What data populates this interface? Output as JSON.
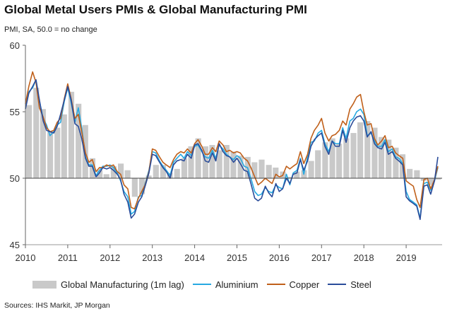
{
  "chart_data": {
    "type": "line",
    "title": "Global Metal Users PMIs & Global Manufacturing PMI",
    "subtitle": "PMI, SA, 50.0 = no change",
    "source": "Sources: IHS Markit, JP Morgan",
    "ylim": [
      45,
      60
    ],
    "yticks": [
      45,
      50,
      55,
      60
    ],
    "xlim": [
      2010,
      2019.85
    ],
    "xticks": [
      "2010",
      "2011",
      "2012",
      "2013",
      "2014",
      "2015",
      "2016",
      "2017",
      "2018",
      "2019"
    ],
    "baseline": 50,
    "grid": false,
    "legend_position": "bottom",
    "bar_series": {
      "name": "Global Manufacturing (1m lag)",
      "color": "#c9c9c9",
      "x": [
        2010.0,
        2010.17,
        2010.33,
        2010.5,
        2010.67,
        2010.83,
        2011.0,
        2011.17,
        2011.33,
        2011.5,
        2011.67,
        2011.83,
        2012.0,
        2012.17,
        2012.33,
        2012.5,
        2012.67,
        2012.83,
        2013.0,
        2013.17,
        2013.33,
        2013.5,
        2013.67,
        2013.83,
        2014.0,
        2014.17,
        2014.33,
        2014.5,
        2014.67,
        2014.83,
        2015.0,
        2015.17,
        2015.33,
        2015.5,
        2015.67,
        2015.83,
        2016.0,
        2016.17,
        2016.33,
        2016.5,
        2016.67,
        2016.83,
        2017.0,
        2017.17,
        2017.33,
        2017.5,
        2017.67,
        2017.83,
        2018.0,
        2018.17,
        2018.33,
        2018.5,
        2018.67,
        2018.83,
        2019.0,
        2019.17,
        2019.33,
        2019.5,
        2019.67
      ],
      "values": [
        55.5,
        56.8,
        55.2,
        53.5,
        53.8,
        54.8,
        56.5,
        55.6,
        54.0,
        51.5,
        50.6,
        50.3,
        50.9,
        51.1,
        50.6,
        48.6,
        48.8,
        50.2,
        51.0,
        51.0,
        50.4,
        50.7,
        51.5,
        52.4,
        53.0,
        52.4,
        52.5,
        52.1,
        52.5,
        52.0,
        51.7,
        51.6,
        51.2,
        51.4,
        51.0,
        50.8,
        50.5,
        50.1,
        50.5,
        50.6,
        51.3,
        52.1,
        52.7,
        53.0,
        52.6,
        53.0,
        53.4,
        54.2,
        54.3,
        53.8,
        53.1,
        52.9,
        52.3,
        51.8,
        50.7,
        50.6,
        49.8,
        49.5,
        49.9
      ]
    },
    "series": [
      {
        "name": "Aluminium",
        "color": "#27a9e1",
        "x": [
          2010.0,
          2010.08,
          2010.17,
          2010.25,
          2010.33,
          2010.42,
          2010.5,
          2010.58,
          2010.67,
          2010.75,
          2010.83,
          2010.92,
          2011.0,
          2011.08,
          2011.17,
          2011.25,
          2011.33,
          2011.42,
          2011.5,
          2011.58,
          2011.67,
          2011.75,
          2011.83,
          2011.92,
          2012.0,
          2012.08,
          2012.17,
          2012.25,
          2012.33,
          2012.42,
          2012.5,
          2012.58,
          2012.67,
          2012.75,
          2012.83,
          2012.92,
          2013.0,
          2013.08,
          2013.17,
          2013.25,
          2013.33,
          2013.42,
          2013.5,
          2013.58,
          2013.67,
          2013.75,
          2013.83,
          2013.92,
          2014.0,
          2014.08,
          2014.17,
          2014.25,
          2014.33,
          2014.42,
          2014.5,
          2014.58,
          2014.67,
          2014.75,
          2014.83,
          2014.92,
          2015.0,
          2015.08,
          2015.17,
          2015.25,
          2015.33,
          2015.42,
          2015.5,
          2015.58,
          2015.67,
          2015.75,
          2015.83,
          2015.92,
          2016.0,
          2016.08,
          2016.17,
          2016.25,
          2016.33,
          2016.42,
          2016.5,
          2016.58,
          2016.67,
          2016.75,
          2016.83,
          2016.92,
          2017.0,
          2017.08,
          2017.17,
          2017.25,
          2017.33,
          2017.42,
          2017.5,
          2017.58,
          2017.67,
          2017.75,
          2017.83,
          2017.92,
          2018.0,
          2018.08,
          2018.17,
          2018.25,
          2018.33,
          2018.42,
          2018.5,
          2018.58,
          2018.67,
          2018.75,
          2018.83,
          2018.92,
          2019.0,
          2019.08,
          2019.17,
          2019.25,
          2019.33,
          2019.42,
          2019.5,
          2019.58,
          2019.67,
          2019.75
        ],
        "values": [
          55.3,
          56.5,
          56.8,
          57.4,
          55.8,
          54.5,
          54.0,
          53.2,
          53.5,
          54.0,
          54.2,
          55.8,
          56.8,
          55.7,
          54.2,
          55.3,
          53.8,
          51.6,
          51.0,
          51.0,
          50.2,
          50.6,
          50.9,
          50.9,
          51.0,
          50.8,
          50.4,
          49.8,
          49.0,
          48.6,
          47.3,
          47.5,
          48.6,
          48.7,
          49.6,
          50.6,
          52.0,
          51.9,
          51.3,
          50.9,
          50.6,
          50.2,
          51.2,
          51.5,
          51.8,
          51.5,
          52.0,
          51.7,
          52.4,
          52.5,
          52.0,
          51.6,
          51.5,
          52.1,
          51.5,
          52.5,
          52.2,
          51.8,
          51.6,
          51.4,
          51.7,
          51.5,
          50.9,
          50.8,
          50.0,
          49.0,
          48.7,
          48.8,
          49.3,
          49.0,
          48.9,
          49.5,
          49.3,
          49.2,
          50.3,
          49.5,
          50.4,
          50.6,
          51.5,
          50.3,
          51.6,
          52.7,
          52.8,
          53.4,
          53.6,
          52.6,
          52.0,
          52.8,
          52.6,
          52.6,
          53.8,
          53.0,
          54.3,
          54.5,
          55.0,
          55.2,
          54.8,
          53.2,
          53.4,
          52.8,
          52.4,
          52.4,
          52.9,
          52.0,
          52.2,
          51.6,
          51.5,
          51.1,
          49.0,
          48.4,
          48.2,
          48.0,
          47.0,
          49.6,
          49.7,
          49.1,
          49.8,
          50.8
        ]
      },
      {
        "name": "Copper",
        "color": "#c0601a",
        "x": [
          2010.0,
          2010.08,
          2010.17,
          2010.25,
          2010.33,
          2010.42,
          2010.5,
          2010.58,
          2010.67,
          2010.75,
          2010.83,
          2010.92,
          2011.0,
          2011.08,
          2011.17,
          2011.25,
          2011.33,
          2011.42,
          2011.5,
          2011.58,
          2011.67,
          2011.75,
          2011.83,
          2011.92,
          2012.0,
          2012.08,
          2012.17,
          2012.25,
          2012.33,
          2012.42,
          2012.5,
          2012.58,
          2012.67,
          2012.75,
          2012.83,
          2012.92,
          2013.0,
          2013.08,
          2013.17,
          2013.25,
          2013.33,
          2013.42,
          2013.5,
          2013.58,
          2013.67,
          2013.75,
          2013.83,
          2013.92,
          2014.0,
          2014.08,
          2014.17,
          2014.25,
          2014.33,
          2014.42,
          2014.5,
          2014.58,
          2014.67,
          2014.75,
          2014.83,
          2014.92,
          2015.0,
          2015.08,
          2015.17,
          2015.25,
          2015.33,
          2015.42,
          2015.5,
          2015.58,
          2015.67,
          2015.75,
          2015.83,
          2015.92,
          2016.0,
          2016.08,
          2016.17,
          2016.25,
          2016.33,
          2016.42,
          2016.5,
          2016.58,
          2016.67,
          2016.75,
          2016.83,
          2016.92,
          2017.0,
          2017.08,
          2017.17,
          2017.25,
          2017.33,
          2017.42,
          2017.5,
          2017.58,
          2017.67,
          2017.75,
          2017.83,
          2017.92,
          2018.0,
          2018.08,
          2018.17,
          2018.25,
          2018.33,
          2018.42,
          2018.5,
          2018.58,
          2018.67,
          2018.75,
          2018.83,
          2018.92,
          2019.0,
          2019.08,
          2019.17,
          2019.25,
          2019.33,
          2019.42,
          2019.5,
          2019.58,
          2019.67,
          2019.75
        ],
        "values": [
          55.6,
          56.9,
          58.0,
          57.2,
          55.3,
          54.6,
          53.8,
          53.5,
          53.6,
          54.2,
          54.5,
          56.0,
          57.1,
          56.0,
          54.5,
          54.8,
          53.5,
          51.9,
          51.2,
          51.4,
          50.5,
          50.8,
          50.8,
          51.0,
          50.9,
          51.0,
          50.5,
          50.3,
          49.5,
          49.2,
          47.8,
          47.7,
          48.5,
          49.0,
          49.5,
          50.5,
          52.2,
          52.1,
          51.6,
          51.2,
          51.0,
          50.8,
          51.4,
          51.8,
          52.0,
          51.9,
          52.2,
          51.9,
          52.6,
          52.9,
          52.4,
          51.8,
          51.8,
          52.3,
          52.0,
          52.8,
          52.5,
          52.0,
          52.1,
          51.9,
          52.0,
          51.9,
          51.5,
          51.3,
          50.8,
          50.1,
          49.5,
          49.7,
          50.0,
          49.8,
          49.6,
          50.3,
          50.1,
          50.2,
          50.9,
          50.7,
          50.9,
          51.1,
          52.0,
          51.1,
          51.8,
          53.0,
          53.6,
          54.0,
          54.5,
          53.4,
          52.8,
          53.2,
          53.3,
          53.6,
          54.3,
          54.0,
          55.2,
          55.6,
          56.1,
          56.3,
          55.0,
          54.0,
          54.1,
          53.0,
          52.5,
          52.8,
          53.2,
          52.3,
          52.4,
          51.9,
          51.7,
          51.5,
          49.8,
          49.6,
          49.4,
          48.4,
          47.8,
          49.9,
          50.0,
          49.2,
          49.9,
          50.9
        ]
      },
      {
        "name": "Steel",
        "color": "#2a4c9a",
        "x": [
          2010.0,
          2010.08,
          2010.17,
          2010.25,
          2010.33,
          2010.42,
          2010.5,
          2010.58,
          2010.67,
          2010.75,
          2010.83,
          2010.92,
          2011.0,
          2011.08,
          2011.17,
          2011.25,
          2011.33,
          2011.42,
          2011.5,
          2011.58,
          2011.67,
          2011.75,
          2011.83,
          2011.92,
          2012.0,
          2012.08,
          2012.17,
          2012.25,
          2012.33,
          2012.42,
          2012.5,
          2012.58,
          2012.67,
          2012.75,
          2012.83,
          2012.92,
          2013.0,
          2013.08,
          2013.17,
          2013.25,
          2013.33,
          2013.42,
          2013.5,
          2013.58,
          2013.67,
          2013.75,
          2013.83,
          2013.92,
          2014.0,
          2014.08,
          2014.17,
          2014.25,
          2014.33,
          2014.42,
          2014.5,
          2014.58,
          2014.67,
          2014.75,
          2014.83,
          2014.92,
          2015.0,
          2015.08,
          2015.17,
          2015.25,
          2015.33,
          2015.42,
          2015.5,
          2015.58,
          2015.67,
          2015.75,
          2015.83,
          2015.92,
          2016.0,
          2016.08,
          2016.17,
          2016.25,
          2016.33,
          2016.42,
          2016.5,
          2016.58,
          2016.67,
          2016.75,
          2016.83,
          2016.92,
          2017.0,
          2017.08,
          2017.17,
          2017.25,
          2017.33,
          2017.42,
          2017.5,
          2017.58,
          2017.67,
          2017.75,
          2017.83,
          2017.92,
          2018.0,
          2018.08,
          2018.17,
          2018.25,
          2018.33,
          2018.42,
          2018.5,
          2018.58,
          2018.67,
          2018.75,
          2018.83,
          2018.92,
          2019.0,
          2019.08,
          2019.17,
          2019.25,
          2019.33,
          2019.42,
          2019.5,
          2019.58,
          2019.67,
          2019.75
        ],
        "values": [
          55.2,
          56.4,
          56.9,
          57.4,
          55.9,
          54.3,
          53.6,
          53.5,
          53.4,
          53.9,
          54.8,
          55.9,
          56.9,
          55.9,
          54.1,
          53.9,
          53.0,
          51.5,
          50.9,
          50.9,
          50.1,
          50.4,
          50.8,
          50.7,
          50.8,
          50.6,
          50.3,
          49.9,
          48.8,
          48.2,
          47.0,
          47.3,
          48.2,
          48.6,
          49.4,
          50.4,
          51.8,
          51.7,
          51.2,
          50.8,
          50.5,
          50.0,
          51.0,
          51.3,
          51.4,
          51.3,
          51.8,
          51.5,
          52.5,
          52.6,
          52.1,
          51.3,
          51.2,
          51.9,
          51.3,
          52.6,
          52.0,
          51.7,
          51.6,
          51.2,
          51.5,
          51.1,
          50.6,
          50.5,
          49.6,
          48.5,
          48.3,
          48.5,
          49.4,
          48.9,
          48.6,
          49.6,
          49.0,
          49.2,
          50.0,
          49.6,
          50.3,
          50.4,
          51.4,
          50.6,
          51.3,
          52.4,
          52.9,
          53.2,
          53.4,
          52.4,
          51.8,
          52.8,
          52.4,
          52.4,
          53.6,
          52.7,
          53.8,
          54.3,
          54.6,
          54.7,
          54.3,
          53.1,
          53.5,
          52.6,
          52.3,
          52.2,
          52.7,
          51.8,
          52.0,
          51.5,
          51.3,
          51.0,
          48.6,
          48.3,
          48.1,
          47.9,
          46.9,
          49.4,
          49.5,
          48.8,
          49.8,
          51.6
        ]
      }
    ]
  }
}
